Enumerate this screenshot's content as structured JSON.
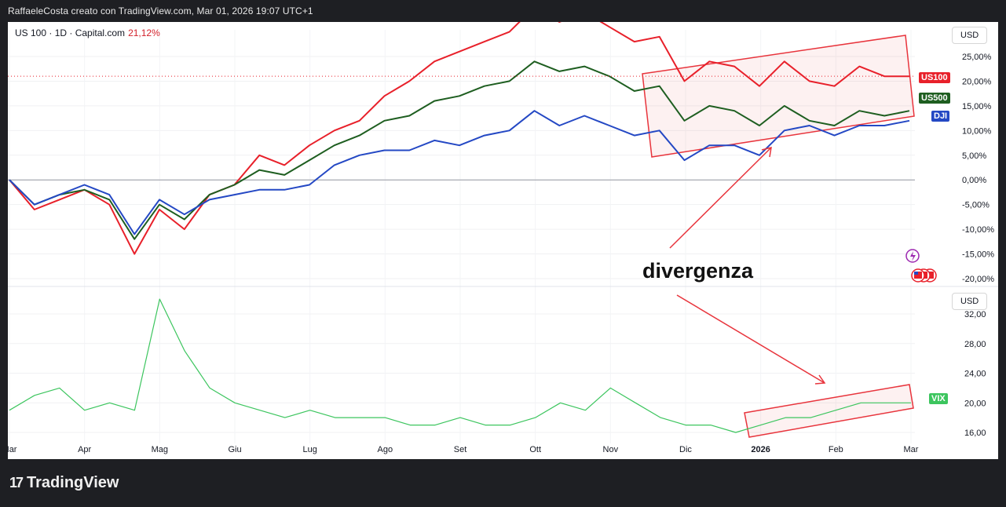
{
  "header": {
    "attribution": "RaffaeleCosta creato con TradingView.com, Mar 01, 2026 19:07 UTC+1"
  },
  "symbol": {
    "label": "US 100 · 1D · Capital.com",
    "change": "21,12%"
  },
  "currency_top": "USD",
  "currency_bottom": "USD",
  "annotation": "divergenza",
  "brand": {
    "name": "TradingView",
    "logo": "17"
  },
  "colors": {
    "us100": "#e8202a",
    "us500": "#1e5e20",
    "dji": "#2448c4",
    "vix": "#3cc55e",
    "box": "#e8343c"
  },
  "icons": [
    "lightning-icon",
    "us-flag-icon"
  ],
  "chart_data": [
    {
      "type": "line",
      "x_ticks": [
        "Mar",
        "Apr",
        "Mag",
        "Giu",
        "Lug",
        "Ago",
        "Set",
        "Ott",
        "Nov",
        "Dic",
        "2026",
        "Feb",
        "Mar"
      ],
      "y_ticks": [
        "25,00%",
        "20,00%",
        "15,00%",
        "10,00%",
        "5,00%",
        "0,00%",
        "-5,00%",
        "-10,00%",
        "-15,00%",
        "-20,00%"
      ],
      "ylim": [
        -20,
        30
      ],
      "series": [
        {
          "name": "US100",
          "last_label": "US100",
          "values": [
            0,
            -6,
            -4,
            -2,
            -5,
            -15,
            -6,
            -10,
            -3,
            -1,
            5,
            3,
            7,
            10,
            12,
            17,
            20,
            24,
            26,
            28,
            30,
            35,
            32,
            34,
            31,
            28,
            29,
            20,
            24,
            23,
            19,
            24,
            20,
            19,
            23,
            21,
            21
          ]
        },
        {
          "name": "US500",
          "last_label": "US500",
          "values": [
            0,
            -5,
            -3,
            -2,
            -4,
            -12,
            -5,
            -8,
            -3,
            -1,
            2,
            1,
            4,
            7,
            9,
            12,
            13,
            16,
            17,
            19,
            20,
            24,
            22,
            23,
            21,
            18,
            19,
            12,
            15,
            14,
            11,
            15,
            12,
            11,
            14,
            13,
            14
          ]
        },
        {
          "name": "DJI",
          "last_label": "DJI",
          "values": [
            0,
            -5,
            -3,
            -1,
            -3,
            -11,
            -4,
            -7,
            -4,
            -3,
            -2,
            -2,
            -1,
            3,
            5,
            6,
            6,
            8,
            7,
            9,
            10,
            14,
            11,
            13,
            11,
            9,
            10,
            4,
            7,
            7,
            5,
            10,
            11,
            9,
            11,
            11,
            12
          ]
        }
      ]
    },
    {
      "type": "line",
      "y_ticks": [
        "32,00",
        "28,00",
        "24,00",
        "20,00",
        "16,00"
      ],
      "ylim": [
        15,
        34
      ],
      "series": [
        {
          "name": "VIX",
          "last_label": "VIX",
          "values": [
            19,
            21,
            22,
            19,
            20,
            19,
            34,
            27,
            22,
            20,
            19,
            18,
            19,
            18,
            18,
            18,
            17,
            17,
            18,
            17,
            17,
            18,
            20,
            19,
            22,
            20,
            18,
            17,
            17,
            16,
            17,
            18,
            18,
            19,
            20,
            20,
            20
          ]
        }
      ]
    }
  ]
}
